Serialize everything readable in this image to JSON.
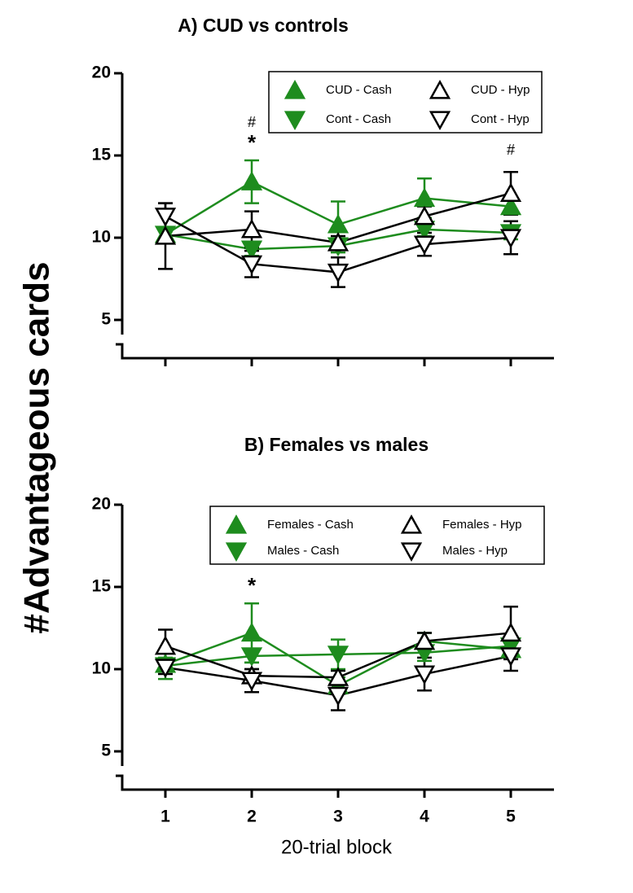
{
  "y_label": "#Advantageous cards",
  "x_label": "20-trial block",
  "chart_data": [
    {
      "type": "line",
      "title": "A) CUD vs controls",
      "x": [
        1,
        2,
        3,
        4,
        5
      ],
      "xlim": [
        0.5,
        5.5
      ],
      "xticks": [
        1,
        2,
        3,
        4,
        5
      ],
      "show_xtick_labels": false,
      "ylim": [
        5,
        20
      ],
      "yticks": [
        5,
        10,
        15,
        20
      ],
      "y_axis_break": true,
      "series": [
        {
          "name": "CUD - Cash",
          "color": "#1e8c1e",
          "marker": "triangle-up",
          "filled": true,
          "values": [
            10.2,
            13.4,
            10.8,
            12.4,
            11.9
          ],
          "errors": [
            0.4,
            1.3,
            1.4,
            1.2,
            0.5
          ]
        },
        {
          "name": "Cont - Cash",
          "color": "#1e8c1e",
          "marker": "triangle-down",
          "filled": true,
          "values": [
            10.2,
            9.3,
            9.5,
            10.5,
            10.3
          ],
          "errors": [
            0.3,
            0.4,
            0.4,
            0.4,
            0.4
          ]
        },
        {
          "name": "CUD - Hyp",
          "color": "#000000",
          "marker": "triangle-up",
          "filled": false,
          "values": [
            10.1,
            10.5,
            9.7,
            11.3,
            12.7
          ],
          "errors": [
            2.0,
            1.1,
            0.4,
            0.6,
            1.3
          ]
        },
        {
          "name": "Cont - Hyp",
          "color": "#000000",
          "marker": "triangle-down",
          "filled": false,
          "values": [
            11.3,
            8.4,
            7.9,
            9.6,
            10.0
          ],
          "errors": [
            0.8,
            0.8,
            0.9,
            0.7,
            1.0
          ]
        }
      ],
      "annotations": [
        {
          "x": 2,
          "text": "*"
        },
        {
          "x": 2,
          "text": "#"
        },
        {
          "x": 5,
          "text": "#"
        }
      ],
      "legend": "upper right"
    },
    {
      "type": "line",
      "title": "B) Females vs males",
      "x": [
        1,
        2,
        3,
        4,
        5
      ],
      "xlim": [
        0.5,
        5.5
      ],
      "xticks": [
        1,
        2,
        3,
        4,
        5
      ],
      "show_xtick_labels": true,
      "ylim": [
        5,
        20
      ],
      "yticks": [
        5,
        10,
        15,
        20
      ],
      "y_axis_break": true,
      "series": [
        {
          "name": "Females - Cash",
          "color": "#1e8c1e",
          "marker": "triangle-up",
          "filled": true,
          "values": [
            10.3,
            12.2,
            9.0,
            11.7,
            11.2
          ],
          "errors": [
            0.4,
            1.8,
            0.5,
            0.5,
            0.4
          ]
        },
        {
          "name": "Males - Cash",
          "color": "#1e8c1e",
          "marker": "triangle-down",
          "filled": true,
          "values": [
            10.2,
            10.8,
            10.9,
            11.0,
            11.4
          ],
          "errors": [
            0.8,
            0.4,
            0.9,
            0.5,
            0.4
          ]
        },
        {
          "name": "Females - Hyp",
          "color": "#000000",
          "marker": "triangle-up",
          "filled": false,
          "values": [
            11.4,
            9.6,
            9.5,
            11.7,
            12.2
          ],
          "errors": [
            1.0,
            0.4,
            0.4,
            0.5,
            1.6
          ]
        },
        {
          "name": "Males - Hyp",
          "color": "#000000",
          "marker": "triangle-down",
          "filled": false,
          "values": [
            10.1,
            9.3,
            8.4,
            9.7,
            10.8
          ],
          "errors": [
            0.4,
            0.7,
            0.9,
            1.0,
            0.9
          ]
        }
      ],
      "annotations": [
        {
          "x": 2,
          "text": "*"
        }
      ],
      "legend": "upper right"
    }
  ]
}
